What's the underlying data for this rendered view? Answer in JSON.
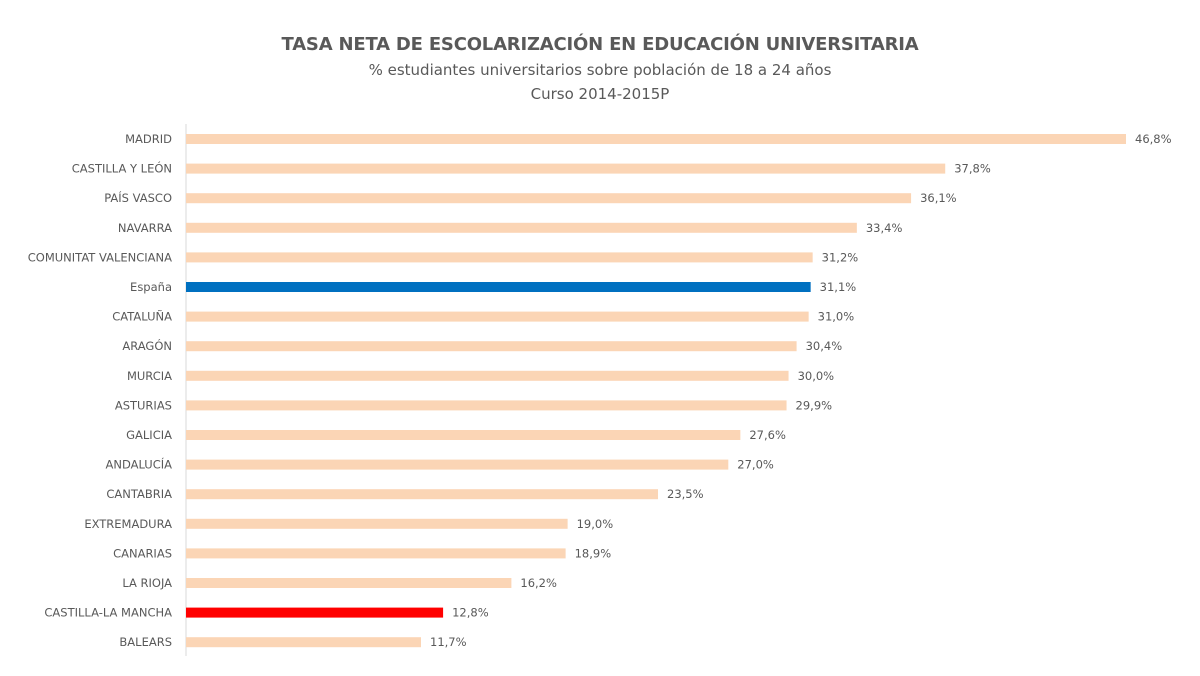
{
  "chart_data": {
    "type": "bar",
    "orientation": "horizontal",
    "title": "TASA NETA DE ESCOLARIZACIÓN EN EDUCACIÓN UNIVERSITARIA",
    "subtitle": "% estudiantes universitarios sobre población de 18 a 24 años",
    "subtitle2": "Curso 2014-2015P",
    "xlabel": "",
    "ylabel": "",
    "xlim": [
      0,
      50
    ],
    "grid": false,
    "legend": "none",
    "categories": [
      "MADRID",
      "CASTILLA Y LEÓN",
      "PAÍS VASCO",
      "NAVARRA",
      "COMUNITAT VALENCIANA",
      "España",
      "CATALUÑA",
      "ARAGÓN",
      "MURCIA",
      "ASTURIAS",
      "GALICIA",
      "ANDALUCÍA",
      "CANTABRIA",
      "EXTREMADURA",
      "CANARIAS",
      "LA RIOJA",
      "CASTILLA-LA MANCHA",
      "BALEARS"
    ],
    "values": [
      46.8,
      37.8,
      36.1,
      33.4,
      31.2,
      31.1,
      31.0,
      30.4,
      30.0,
      29.9,
      27.6,
      27.0,
      23.5,
      19.0,
      18.9,
      16.2,
      12.8,
      11.7
    ],
    "value_labels": [
      "46,8%",
      "37,8%",
      "36,1%",
      "33,4%",
      "31,2%",
      "31,1%",
      "31,0%",
      "30,4%",
      "30,0%",
      "29,9%",
      "27,6%",
      "27,0%",
      "23,5%",
      "19,0%",
      "18,9%",
      "16,2%",
      "12,8%",
      "11,7%"
    ],
    "colors": {
      "default": "#FBD5B5",
      "highlight_national": "#0070C0",
      "highlight_region": "#FF0000",
      "axis": "#D9D9D9"
    },
    "highlights": {
      "España": "highlight_national",
      "CASTILLA-LA MANCHA": "highlight_region"
    }
  }
}
